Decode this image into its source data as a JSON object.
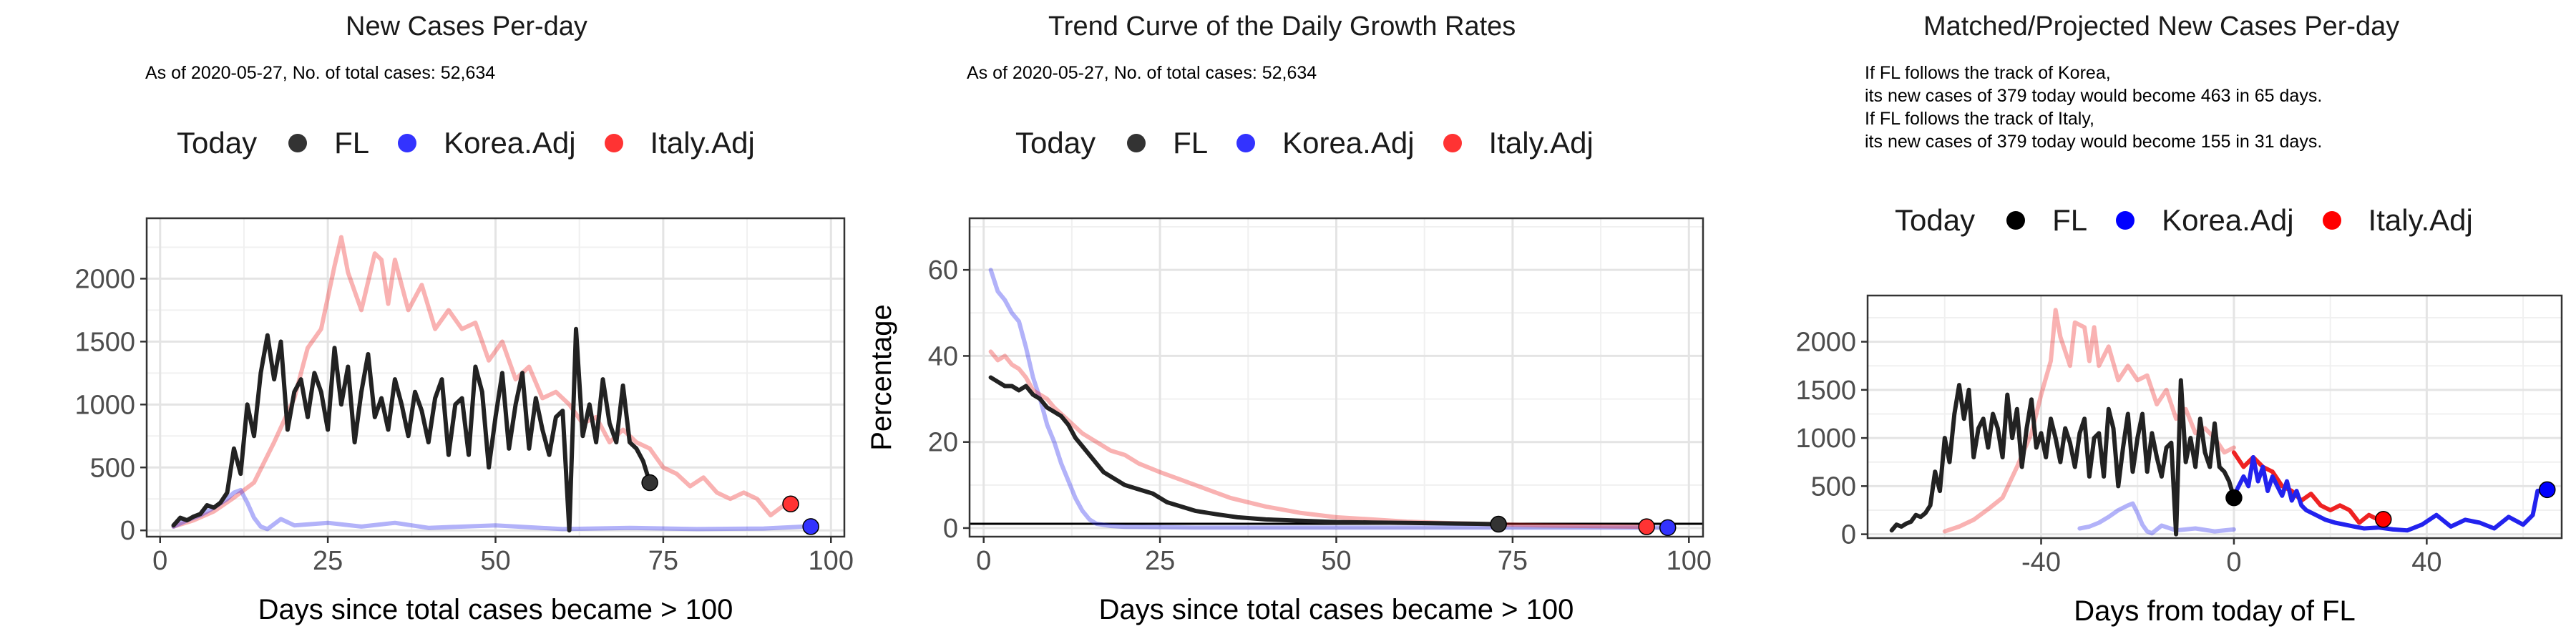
{
  "panels": [
    {
      "title": "New Cases Per-day",
      "subtitle_lines": [
        "As of 2020-05-27, No. of total cases: 52,634"
      ],
      "legend": {
        "title": "Today",
        "items": [
          "FL",
          "Korea.Adj",
          "Italy.Adj"
        ]
      }
    },
    {
      "title": "Trend Curve of the Daily Growth Rates",
      "subtitle_lines": [
        "As of 2020-05-27, No. of total cases: 52,634"
      ],
      "legend": {
        "title": "Today",
        "items": [
          "FL",
          "Korea.Adj",
          "Italy.Adj"
        ]
      }
    },
    {
      "title": "Matched/Projected New Cases Per-day",
      "subtitle_lines": [
        "If FL follows the track of Korea,",
        "its new cases of 379 today would become 463 in 65 days.",
        "If FL follows the track of Italy,",
        "its new cases of 379 today would become 155 in 31 days."
      ],
      "legend": {
        "title": "Today",
        "items": [
          "FL",
          "Korea.Adj",
          "Italy.Adj"
        ]
      }
    }
  ],
  "colors": {
    "FL": "#333333",
    "Korea.Adj": "#3333ff",
    "Italy.Adj": "#ff3333",
    "today_FL_right": "#000000",
    "today_Korea_right": "#0000ff",
    "today_Italy_right": "#ff0000"
  },
  "chart_data": [
    {
      "type": "line",
      "title": "New Cases Per-day",
      "xlabel": "Days since total cases became > 100",
      "ylabel": "",
      "xlim": [
        -2,
        102
      ],
      "ylim": [
        -50,
        2480
      ],
      "xticks": [
        0,
        25,
        50,
        75,
        100
      ],
      "yticks": [
        0,
        500,
        1000,
        1500,
        2000
      ],
      "grid": true,
      "legend_position": "top",
      "series": [
        {
          "name": "Italy.Adj",
          "x": [
            2,
            5,
            8,
            11,
            14,
            17,
            20,
            22,
            24,
            26,
            27,
            28,
            29,
            30,
            32,
            33,
            34,
            35,
            37,
            39,
            41,
            43,
            45,
            47,
            49,
            51,
            53,
            55,
            57,
            59,
            61,
            63,
            65,
            67,
            69,
            71,
            73,
            75,
            77,
            79,
            81,
            83,
            85,
            87,
            89,
            91,
            93
          ],
          "y": [
            30,
            80,
            150,
            260,
            380,
            700,
            1050,
            1450,
            1600,
            2100,
            2330,
            2050,
            1900,
            1750,
            2200,
            2150,
            1800,
            2150,
            1750,
            1950,
            1600,
            1750,
            1600,
            1650,
            1350,
            1500,
            1200,
            1300,
            1050,
            1100,
            1000,
            850,
            900,
            700,
            800,
            700,
            650,
            500,
            450,
            350,
            420,
            300,
            250,
            300,
            250,
            120,
            200
          ],
          "opacity": 0.35
        },
        {
          "name": "Korea.Adj",
          "x": [
            2,
            4,
            6,
            8,
            10,
            11,
            12,
            13,
            14,
            15,
            16,
            18,
            20,
            25,
            30,
            35,
            40,
            50,
            60,
            70,
            80,
            90,
            96
          ],
          "y": [
            30,
            80,
            120,
            180,
            250,
            300,
            320,
            220,
            100,
            30,
            10,
            90,
            40,
            60,
            30,
            60,
            20,
            40,
            10,
            20,
            10,
            15,
            30
          ],
          "opacity": 0.35
        },
        {
          "name": "FL",
          "x": [
            2,
            3,
            4,
            5,
            6,
            7,
            8,
            9,
            10,
            11,
            12,
            13,
            14,
            15,
            16,
            17,
            18,
            19,
            20,
            21,
            22,
            23,
            24,
            25,
            26,
            27,
            28,
            29,
            30,
            31,
            32,
            33,
            34,
            35,
            36,
            37,
            38,
            39,
            40,
            41,
            42,
            43,
            44,
            45,
            46,
            47,
            48,
            49,
            50,
            51,
            52,
            53,
            54,
            55,
            56,
            57,
            58,
            59,
            60,
            61,
            62,
            63,
            64,
            65,
            66,
            67,
            68,
            69,
            70,
            71,
            72,
            73
          ],
          "y": [
            40,
            100,
            80,
            110,
            130,
            200,
            180,
            220,
            300,
            650,
            450,
            1000,
            750,
            1250,
            1550,
            1200,
            1500,
            800,
            1100,
            1200,
            900,
            1250,
            1100,
            800,
            1450,
            1000,
            1300,
            700,
            1100,
            1400,
            900,
            1050,
            800,
            1200,
            1000,
            750,
            1100,
            950,
            700,
            1050,
            1200,
            600,
            1000,
            1050,
            600,
            1300,
            1100,
            500,
            900,
            1250,
            650,
            1000,
            1250,
            650,
            1050,
            800,
            600,
            900,
            950,
            0,
            1600,
            750,
            1000,
            700,
            1200,
            850,
            700,
            1150,
            700,
            650,
            550,
            379
          ],
          "opacity": 1.0
        }
      ],
      "today_points": [
        {
          "series": "FL",
          "x": 73,
          "y": 379
        },
        {
          "series": "Italy.Adj",
          "x": 94,
          "y": 210
        },
        {
          "series": "Korea.Adj",
          "x": 97,
          "y": 30
        }
      ]
    },
    {
      "type": "line",
      "title": "Trend Curve of the Daily Growth Rates",
      "xlabel": "Days since total cases became > 100",
      "ylabel": "Percentage",
      "xlim": [
        -2,
        102
      ],
      "ylim": [
        -2,
        72
      ],
      "xticks": [
        0,
        25,
        50,
        75,
        100
      ],
      "yticks": [
        0,
        20,
        40,
        60
      ],
      "hline": 1,
      "grid": true,
      "legend_position": "top",
      "series": [
        {
          "name": "Korea.Adj",
          "x": [
            1,
            2,
            3,
            4,
            5,
            6,
            7,
            8,
            9,
            10,
            11,
            12,
            13,
            14,
            15,
            16,
            18,
            20,
            25,
            30,
            40,
            50,
            60,
            70,
            80,
            90,
            97
          ],
          "y": [
            60,
            55,
            53,
            50,
            48,
            42,
            35,
            30,
            24,
            20,
            15,
            11,
            7,
            4,
            2,
            1,
            0.5,
            0.3,
            0.2,
            0.1,
            0.1,
            0.1,
            0.1,
            0.1,
            0.1,
            0.1,
            0.1
          ],
          "opacity": 0.35
        },
        {
          "name": "Italy.Adj",
          "x": [
            1,
            2,
            3,
            4,
            5,
            6,
            7,
            8,
            9,
            10,
            12,
            14,
            16,
            18,
            20,
            22,
            25,
            30,
            35,
            40,
            45,
            50,
            55,
            60,
            65,
            70,
            75,
            80,
            85,
            90,
            94
          ],
          "y": [
            41,
            39,
            40,
            38,
            37,
            35,
            32,
            31,
            30,
            28,
            25,
            22,
            20,
            18,
            17,
            15,
            13,
            10,
            7,
            5,
            3.5,
            2.5,
            2,
            1.5,
            1.2,
            1,
            0.8,
            0.6,
            0.5,
            0.4,
            0.3
          ],
          "opacity": 0.35
        },
        {
          "name": "FL",
          "x": [
            1,
            2,
            3,
            4,
            5,
            6,
            7,
            8,
            9,
            10,
            11,
            12,
            13,
            14,
            15,
            16,
            17,
            18,
            19,
            20,
            22,
            24,
            26,
            28,
            30,
            33,
            36,
            40,
            45,
            50,
            55,
            60,
            65,
            70,
            73
          ],
          "y": [
            35,
            34,
            33,
            33,
            32,
            33,
            31,
            30,
            28,
            27,
            26,
            24,
            21,
            19,
            17,
            15,
            13,
            12,
            11,
            10,
            9,
            8,
            6,
            5,
            4,
            3.2,
            2.5,
            2,
            1.7,
            1.4,
            1.3,
            1.2,
            1.1,
            1.0,
            0.9
          ],
          "opacity": 1.0
        }
      ],
      "today_points": [
        {
          "series": "FL",
          "x": 73,
          "y": 0.9
        },
        {
          "series": "Italy.Adj",
          "x": 94,
          "y": 0.3
        },
        {
          "series": "Korea.Adj",
          "x": 97,
          "y": 0.1
        }
      ]
    },
    {
      "type": "line",
      "title": "Matched/Projected New Cases Per-day",
      "xlabel": "Days from today of FL",
      "ylabel": "",
      "xlim": [
        -76,
        68
      ],
      "ylim": [
        -40,
        2480
      ],
      "xticks": [
        -40,
        0,
        40
      ],
      "yticks": [
        0,
        500,
        1000,
        1500,
        2000
      ],
      "grid": true,
      "legend_position": "top",
      "series": [
        {
          "name": "Italy.Adj",
          "x": [
            -60,
            -57,
            -54,
            -51,
            -48,
            -45,
            -42,
            -40,
            -38,
            -37,
            -36,
            -35,
            -34,
            -33,
            -31,
            -30,
            -29,
            -28,
            -26,
            -24,
            -22,
            -20,
            -18,
            -16,
            -14,
            -12,
            -10,
            -8,
            -6,
            -4,
            -2,
            0
          ],
          "y": [
            30,
            80,
            150,
            260,
            380,
            700,
            1050,
            1450,
            1800,
            2330,
            2050,
            1900,
            1750,
            2200,
            2150,
            1800,
            2150,
            1750,
            1950,
            1600,
            1750,
            1600,
            1650,
            1350,
            1500,
            1200,
            1300,
            1050,
            1100,
            1000,
            850,
            900
          ],
          "opacity": 0.35
        },
        {
          "name": "Italy.Adj",
          "x": [
            0,
            2,
            4,
            6,
            8,
            10,
            12,
            14,
            16,
            18,
            20,
            22,
            24,
            26,
            28,
            30,
            31
          ],
          "y": [
            850,
            700,
            800,
            700,
            650,
            500,
            450,
            350,
            420,
            300,
            250,
            300,
            250,
            120,
            200,
            150,
            155
          ],
          "opacity": 1.0
        },
        {
          "name": "Korea.Adj",
          "x": [
            -32,
            -30,
            -28,
            -26,
            -24,
            -22,
            -21,
            -20,
            -19,
            -18,
            -17,
            -15,
            -12,
            -8,
            -4,
            0
          ],
          "y": [
            60,
            80,
            120,
            180,
            250,
            300,
            320,
            220,
            100,
            30,
            10,
            90,
            40,
            60,
            30,
            50
          ],
          "opacity": 0.35
        },
        {
          "name": "Korea.Adj",
          "x": [
            0,
            2,
            3,
            4,
            5,
            6,
            7,
            8,
            9,
            10,
            11,
            12,
            13,
            14,
            15,
            17,
            19,
            21,
            23,
            25,
            27,
            30,
            33,
            36,
            39,
            42,
            45,
            48,
            51,
            54,
            57,
            60,
            62,
            63,
            65
          ],
          "y": [
            400,
            600,
            500,
            800,
            550,
            700,
            450,
            600,
            500,
            400,
            550,
            350,
            450,
            300,
            250,
            200,
            150,
            120,
            100,
            80,
            60,
            70,
            50,
            40,
            100,
            200,
            80,
            150,
            120,
            60,
            180,
            100,
            200,
            450,
            463
          ],
          "opacity": 1.0
        },
        {
          "name": "FL",
          "x": [
            -71,
            -70,
            -69,
            -68,
            -67,
            -66,
            -65,
            -64,
            -63,
            -62,
            -61,
            -60,
            -59,
            -58,
            -57,
            -56,
            -55,
            -54,
            -53,
            -52,
            -51,
            -50,
            -49,
            -48,
            -47,
            -46,
            -45,
            -44,
            -43,
            -42,
            -41,
            -40,
            -39,
            -38,
            -37,
            -36,
            -35,
            -34,
            -33,
            -32,
            -31,
            -30,
            -29,
            -28,
            -27,
            -26,
            -25,
            -24,
            -23,
            -22,
            -21,
            -20,
            -19,
            -18,
            -17,
            -16,
            -15,
            -14,
            -13,
            -12,
            -11,
            -10,
            -9,
            -8,
            -7,
            -6,
            -5,
            -4,
            -3,
            -2,
            -1,
            0
          ],
          "y": [
            40,
            100,
            80,
            110,
            130,
            200,
            180,
            220,
            300,
            650,
            450,
            1000,
            750,
            1250,
            1550,
            1200,
            1500,
            800,
            1100,
            1200,
            900,
            1250,
            1100,
            800,
            1450,
            1000,
            1300,
            700,
            1100,
            1400,
            900,
            1050,
            800,
            1200,
            1000,
            750,
            1100,
            950,
            700,
            1050,
            1200,
            600,
            1000,
            1050,
            600,
            1300,
            1100,
            500,
            900,
            1250,
            650,
            1000,
            1250,
            650,
            1050,
            800,
            600,
            900,
            950,
            0,
            1600,
            750,
            1000,
            700,
            1200,
            850,
            700,
            1150,
            700,
            650,
            550,
            379
          ],
          "opacity": 1.0
        }
      ],
      "today_points": [
        {
          "series": "FL",
          "x": 0,
          "y": 379
        },
        {
          "series": "Italy.Adj",
          "x": 31,
          "y": 155
        },
        {
          "series": "Korea.Adj",
          "x": 65,
          "y": 463
        }
      ]
    }
  ]
}
